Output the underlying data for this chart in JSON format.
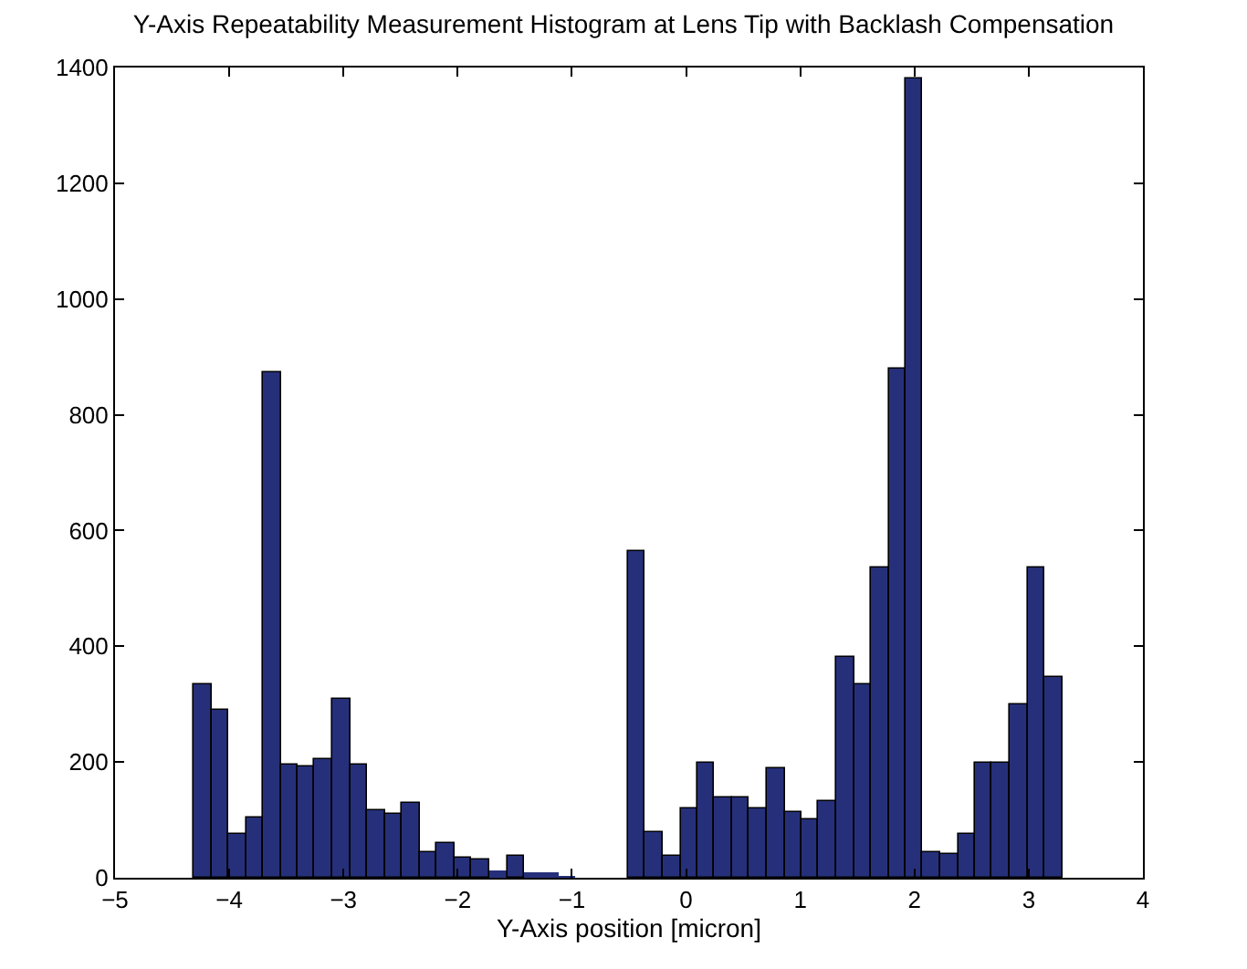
{
  "chart_data": {
    "type": "histogram",
    "title": "Y-Axis Repeatability Measurement Histogram at Lens Tip with Backlash Compensation",
    "xlabel": "Y-Axis position [micron]",
    "bins": [
      -4.31,
      -4.16,
      -4.01,
      -3.85,
      -3.7,
      -3.55,
      -3.4,
      -3.25,
      -3.09,
      -2.94,
      -2.79,
      -2.64,
      -2.49,
      -2.33,
      -2.18,
      -2.03,
      -1.88,
      -1.73,
      -1.57,
      -1.42,
      -1.27,
      -1.12,
      -0.97,
      -0.51,
      -0.36,
      -0.21,
      -0.05,
      0.1,
      0.25,
      0.4,
      0.55,
      0.71,
      0.86,
      1.01,
      1.16,
      1.31,
      1.47,
      1.62,
      1.77,
      1.92,
      2.07,
      2.23,
      2.38,
      2.53,
      2.68,
      2.83,
      2.99,
      3.14,
      3.29
    ],
    "values": [
      335,
      290,
      76,
      104,
      875,
      197,
      193,
      205,
      310,
      195,
      117,
      110,
      130,
      43,
      60,
      34,
      33,
      13,
      39,
      8,
      8,
      2,
      0,
      565,
      80,
      38,
      120,
      200,
      138,
      138,
      120,
      188,
      115,
      100,
      132,
      380,
      335,
      535,
      880,
      1380,
      45,
      42,
      75,
      198,
      198,
      300,
      535,
      348
    ],
    "color": "#26307a",
    "xlim": [
      -5,
      4
    ],
    "xticks": [
      -5,
      -4,
      -3,
      -2,
      -1,
      0,
      1,
      2,
      3,
      4
    ],
    "ylim": [
      0,
      1400
    ],
    "yticks": [
      0,
      200,
      400,
      600,
      800,
      1000,
      1200,
      1400
    ]
  }
}
